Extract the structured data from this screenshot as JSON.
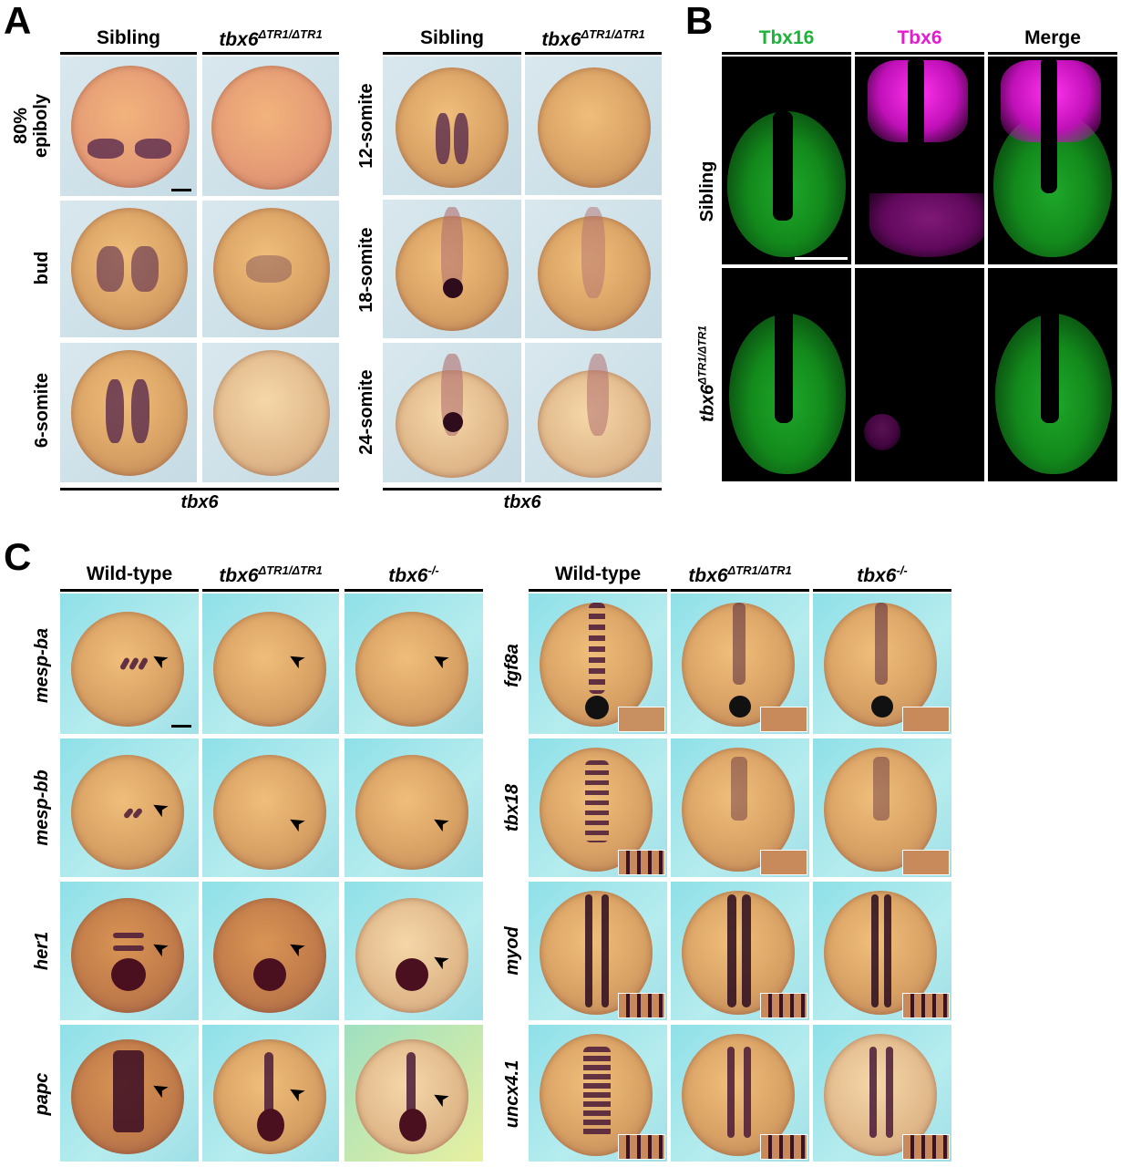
{
  "panels": {
    "a": "A",
    "b": "B",
    "c": "C"
  },
  "panel_a": {
    "left_cols": [
      "Sibling",
      "tbx6"
    ],
    "left_cols_sup": "ΔTR1/ΔTR1",
    "right_cols": [
      "Sibling",
      "tbx6"
    ],
    "right_cols_sup": "ΔTR1/ΔTR1",
    "left_rows": [
      "80%",
      "epiboly",
      "bud",
      "6-somite"
    ],
    "right_rows": [
      "12-somite",
      "18-somite",
      "24-somite"
    ],
    "footer_left": "tbx6",
    "footer_right": "tbx6"
  },
  "panel_b": {
    "cols": [
      "Tbx16",
      "Tbx6",
      "Merge"
    ],
    "col_colors": [
      "#1db33a",
      "#e81ad0",
      "#000000"
    ],
    "rows": [
      "Sibling",
      "tbx6"
    ],
    "row_sup": "ΔTR1/ΔTR1"
  },
  "panel_c": {
    "left_cols": [
      "Wild-type",
      "tbx6",
      "tbx6"
    ],
    "left_sups": [
      "",
      "ΔTR1/ΔTR1",
      "-/-"
    ],
    "right_cols": [
      "Wild-type",
      "tbx6",
      "tbx6"
    ],
    "right_sups": [
      "",
      "ΔTR1/ΔTR1",
      "-/-"
    ],
    "left_rows": [
      "mesp-ba",
      "mesp-bb",
      "her1",
      "papc"
    ],
    "right_rows": [
      "fgf8a",
      "tbx18",
      "myod",
      "uncx4.1"
    ]
  }
}
